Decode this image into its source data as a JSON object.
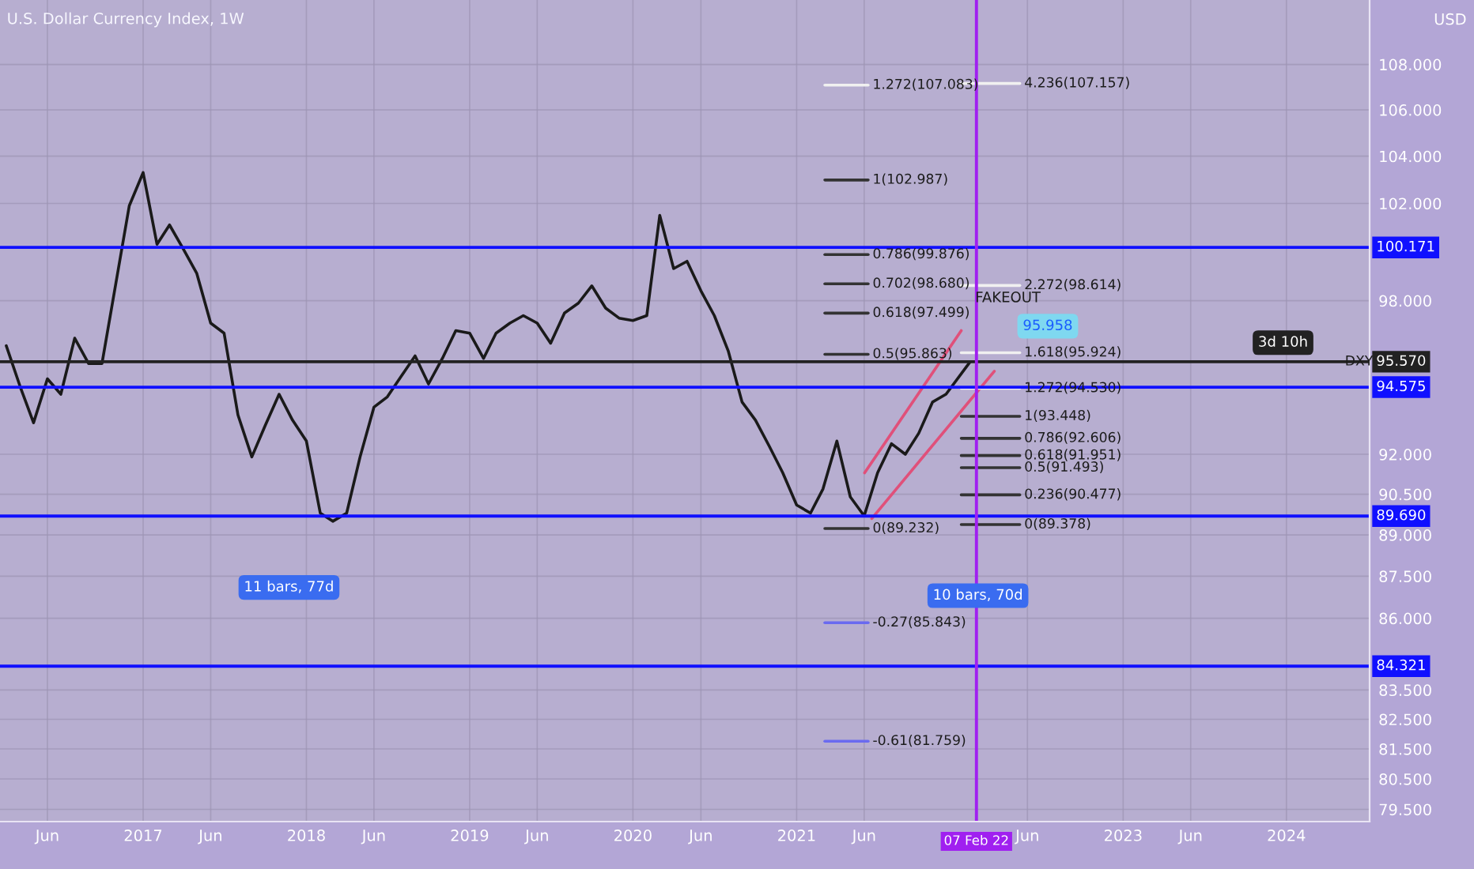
{
  "chart_data": {
    "type": "line",
    "title": "U.S. Dollar Currency Index, 1W",
    "x": [
      "2016-03",
      "2016-04",
      "2016-05",
      "2016-06",
      "2016-07",
      "2016-08",
      "2016-09",
      "2016-10",
      "2016-11",
      "2016-12",
      "2017-01",
      "2017-02",
      "2017-03",
      "2017-04",
      "2017-05",
      "2017-06",
      "2017-07",
      "2017-08",
      "2017-09",
      "2017-10",
      "2017-11",
      "2017-12",
      "2018-01",
      "2018-02",
      "2018-03",
      "2018-04",
      "2018-05",
      "2018-06",
      "2018-07",
      "2018-08",
      "2018-09",
      "2018-10",
      "2018-11",
      "2018-12",
      "2019-01",
      "2019-02",
      "2019-03",
      "2019-04",
      "2019-05",
      "2019-06",
      "2019-07",
      "2019-08",
      "2019-09",
      "2019-10",
      "2019-11",
      "2019-12",
      "2020-01",
      "2020-02",
      "2020-03",
      "2020-04",
      "2020-05",
      "2020-06",
      "2020-07",
      "2020-08",
      "2020-09",
      "2020-10",
      "2020-11",
      "2020-12",
      "2021-01",
      "2021-02",
      "2021-03",
      "2021-04",
      "2021-05",
      "2021-06",
      "2021-07",
      "2021-08",
      "2021-09",
      "2021-10",
      "2021-11",
      "2021-12",
      "2022-01-24"
    ],
    "series": [
      {
        "color": "#1a1a1a",
        "values": [
          96.2,
          94.6,
          93.2,
          94.9,
          94.3,
          96.5,
          95.5,
          95.5,
          98.7,
          101.9,
          103.3,
          100.3,
          101.1,
          100.1,
          99.1,
          97.1,
          96.7,
          93.5,
          91.9,
          93.1,
          94.3,
          93.3,
          92.5,
          89.8,
          89.5,
          89.8,
          91.9,
          93.8,
          94.2,
          95.0,
          95.8,
          94.7,
          95.7,
          96.8,
          96.7,
          95.7,
          96.7,
          97.1,
          97.4,
          97.1,
          96.3,
          97.5,
          97.9,
          98.6,
          97.7,
          97.3,
          97.2,
          97.4,
          101.5,
          99.3,
          99.6,
          98.4,
          97.4,
          96.0,
          94.0,
          93.3,
          92.3,
          91.3,
          90.1,
          89.8,
          90.7,
          92.5,
          90.4,
          89.7,
          91.3,
          92.4,
          92.0,
          92.8,
          94.0,
          94.3,
          95.57
        ]
      },
      {
        "type": "line",
        "color": "#e0507a",
        "x": [
          "2021-06-02",
          "2022-01-04"
        ],
        "values": [
          91.3,
          96.8
        ]
      },
      {
        "type": "line",
        "color": "#e0507a",
        "x": [
          "2021-06-18",
          "2022-03-19"
        ],
        "values": [
          89.6,
          95.2
        ]
      },
      {
        "type": "line",
        "color": "#f0f0f0",
        "x": [
          "2021-03-05",
          "2021-06-10"
        ],
        "values": [
          107.083,
          107.083
        ]
      },
      {
        "type": "line",
        "color": "#333333",
        "x": [
          "2021-03-05",
          "2021-06-10"
        ],
        "values": [
          102.987,
          102.987
        ]
      },
      {
        "type": "line",
        "color": "#333333",
        "x": [
          "2021-03-05",
          "2021-06-10"
        ],
        "values": [
          99.876,
          99.876
        ]
      },
      {
        "type": "line",
        "color": "#333333",
        "x": [
          "2021-03-05",
          "2021-06-10"
        ],
        "values": [
          98.68,
          98.68
        ]
      },
      {
        "type": "line",
        "color": "#333333",
        "x": [
          "2021-03-05",
          "2021-06-10"
        ],
        "values": [
          97.499,
          97.499
        ]
      },
      {
        "type": "line",
        "color": "#333333",
        "x": [
          "2021-03-05",
          "2021-06-10"
        ],
        "values": [
          95.863,
          95.863
        ]
      },
      {
        "type": "line",
        "color": "#333333",
        "x": [
          "2021-03-05",
          "2021-06-10"
        ],
        "values": [
          89.232,
          89.232
        ]
      },
      {
        "type": "line",
        "color": "#6a6af0",
        "x": [
          "2021-03-05",
          "2021-06-10"
        ],
        "values": [
          85.843,
          85.843
        ]
      },
      {
        "type": "line",
        "color": "#6a6af0",
        "x": [
          "2021-03-05",
          "2021-06-10"
        ],
        "values": [
          81.759,
          81.759
        ]
      },
      {
        "type": "line",
        "color": "#f0f0f0",
        "x": [
          "2022-01-04",
          "2022-05-15"
        ],
        "values": [
          107.157,
          107.157
        ]
      },
      {
        "type": "line",
        "color": "#f0f0f0",
        "x": [
          "2022-01-04",
          "2022-05-15"
        ],
        "values": [
          98.614,
          98.614
        ]
      },
      {
        "type": "line",
        "color": "#f0f0f0",
        "x": [
          "2022-01-04",
          "2022-05-15"
        ],
        "values": [
          95.924,
          95.924
        ]
      },
      {
        "type": "line",
        "color": "#f0f0f0",
        "x": [
          "2022-01-04",
          "2022-05-15"
        ],
        "values": [
          94.53,
          94.53
        ]
      },
      {
        "type": "line",
        "color": "#333333",
        "x": [
          "2022-01-04",
          "2022-05-15"
        ],
        "values": [
          93.448,
          93.448
        ]
      },
      {
        "type": "line",
        "color": "#333333",
        "x": [
          "2022-01-04",
          "2022-05-15"
        ],
        "values": [
          92.606,
          92.606
        ]
      },
      {
        "type": "line",
        "color": "#333333",
        "x": [
          "2022-01-04",
          "2022-05-15"
        ],
        "values": [
          91.951,
          91.951
        ]
      },
      {
        "type": "line",
        "color": "#333333",
        "x": [
          "2022-01-04",
          "2022-05-15"
        ],
        "values": [
          91.493,
          91.493
        ]
      },
      {
        "type": "line",
        "color": "#333333",
        "x": [
          "2022-01-04",
          "2022-05-15"
        ],
        "values": [
          90.477,
          90.477
        ]
      },
      {
        "type": "line",
        "color": "#333333",
        "x": [
          "2022-01-04",
          "2022-05-15"
        ],
        "values": [
          89.378,
          89.378
        ]
      }
    ],
    "log": "y",
    "ylim": [
      79.1,
      110.9
    ],
    "yticks": [
      {
        "value": 79.5,
        "label": "79.500"
      },
      {
        "value": 80.5,
        "label": "80.500"
      },
      {
        "value": 81.5,
        "label": "81.500"
      },
      {
        "value": 82.5,
        "label": "82.500"
      },
      {
        "value": 83.5,
        "label": "83.500"
      },
      {
        "value": 86,
        "label": "86.000"
      },
      {
        "value": 87.5,
        "label": "87.500"
      },
      {
        "value": 89,
        "label": "89.000"
      },
      {
        "value": 90.5,
        "label": "90.500"
      },
      {
        "value": 92,
        "label": "92.000"
      },
      {
        "value": 98,
        "label": "98.000"
      },
      {
        "value": 102,
        "label": "102.000"
      },
      {
        "value": 104,
        "label": "104.000"
      },
      {
        "value": 106,
        "label": "106.000"
      },
      {
        "value": 108,
        "label": "108.000"
      }
    ],
    "xlim": [
      "2016-02-16",
      "2024-07-05"
    ],
    "xticks": [
      {
        "value": "2016-06",
        "label": "Jun"
      },
      {
        "value": "2017",
        "label": "2017"
      },
      {
        "value": "2017-06",
        "label": "Jun"
      },
      {
        "value": "2018",
        "label": "2018"
      },
      {
        "value": "2018-06",
        "label": "Jun"
      },
      {
        "value": "2019",
        "label": "2019"
      },
      {
        "value": "2019-06",
        "label": "Jun"
      },
      {
        "value": "2020",
        "label": "2020"
      },
      {
        "value": "2020-06",
        "label": "Jun"
      },
      {
        "value": "2021",
        "label": "2021"
      },
      {
        "value": "2021-06",
        "label": "Jun"
      },
      {
        "value": "2022-06",
        "label": "Jun"
      },
      {
        "value": "2023",
        "label": "2023"
      },
      {
        "value": "2023-06",
        "label": "Jun"
      },
      {
        "value": "2024",
        "label": "2024"
      }
    ],
    "grid": true,
    "ref_lines": [
      {
        "axis": "y",
        "value": 100.171,
        "label": "100.171",
        "color": "#1010ff"
      },
      {
        "axis": "y",
        "value": 94.575,
        "label": "94.575",
        "color": "#1010ff"
      },
      {
        "axis": "y",
        "value": 89.69,
        "label": "89.690",
        "color": "#1010ff"
      },
      {
        "axis": "y",
        "value": 84.321,
        "label": "84.321",
        "color": "#1010ff"
      },
      {
        "axis": "y",
        "value": 95.57,
        "label": "95.570",
        "color": "#222222"
      },
      {
        "axis": "x",
        "value": "2022-02-07",
        "label": "07 Feb 22",
        "color": "#a020f0"
      }
    ],
    "annotations": [
      "USD",
      {
        "text": "DXY",
        "x": "2024-05-01",
        "y": 95.57
      },
      "3d 10h",
      "FAKEOUT",
      "95.958",
      "11 bars, 77d",
      "10 bars, 70d",
      {
        "text": "1.272(107.083)",
        "x": "2021-06-10",
        "y": 107.083
      },
      {
        "text": "1(102.987)",
        "x": "2021-06-10",
        "y": 102.987
      },
      {
        "text": "0.786(99.876)",
        "x": "2021-06-10",
        "y": 99.876
      },
      {
        "text": "0.702(98.680)",
        "x": "2021-06-10",
        "y": 98.68
      },
      {
        "text": "0.618(97.499)",
        "x": "2021-06-10",
        "y": 97.499
      },
      {
        "text": "0.5(95.863)",
        "x": "2021-06-10",
        "y": 95.863
      },
      {
        "text": "0(89.232)",
        "x": "2021-06-10",
        "y": 89.232
      },
      {
        "text": "-0.27(85.843)",
        "x": "2021-06-10",
        "y": 85.843
      },
      {
        "text": "-0.61(81.759)",
        "x": "2021-06-10",
        "y": 81.759
      },
      {
        "text": "4.236(107.157)",
        "x": "2022-05-15",
        "y": 107.157
      },
      {
        "text": "2.272(98.614)",
        "x": "2022-05-15",
        "y": 98.614
      },
      {
        "text": "1.618(95.924)",
        "x": "2022-05-15",
        "y": 95.924
      },
      {
        "text": "1.272(94.530)",
        "x": "2022-05-15",
        "y": 94.53
      },
      {
        "text": "1(93.448)",
        "x": "2022-05-15",
        "y": 93.448
      },
      {
        "text": "0.786(92.606)",
        "x": "2022-05-15",
        "y": 92.606
      },
      {
        "text": "0.618(91.951)",
        "x": "2022-05-15",
        "y": 91.951
      },
      {
        "text": "0.5(91.493)",
        "x": "2022-05-15",
        "y": 91.493
      },
      {
        "text": "0.236(90.477)",
        "x": "2022-05-15",
        "y": 90.477
      },
      {
        "text": "0(89.378)",
        "x": "2022-05-15",
        "y": 89.378
      }
    ]
  }
}
